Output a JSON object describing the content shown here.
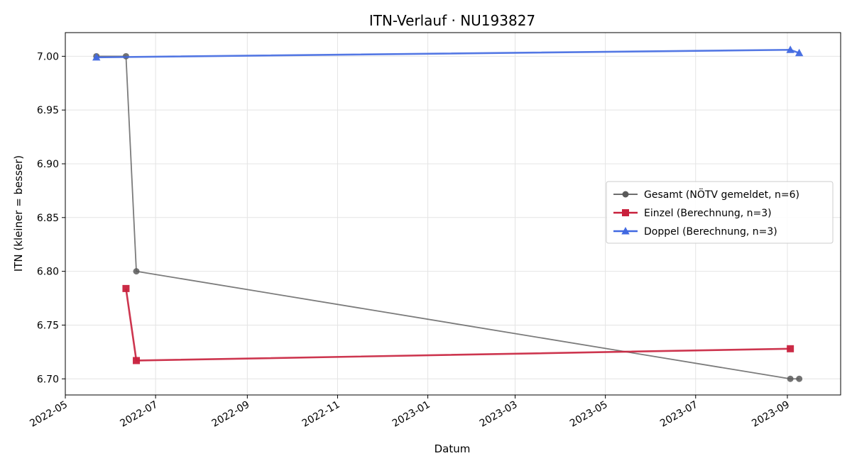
{
  "chart_data": {
    "type": "line",
    "title": "ITN-Verlauf · NU193827",
    "xlabel": "Datum",
    "ylabel": "ITN  (kleiner = besser)",
    "x_type": "date",
    "xlim": [
      "2022-05-01",
      "2023-10-07"
    ],
    "ylim": [
      6.685,
      7.022
    ],
    "x_ticks": [
      "2022-05",
      "2022-07",
      "2022-09",
      "2022-11",
      "2023-01",
      "2023-03",
      "2023-05",
      "2023-07",
      "2023-09"
    ],
    "y_ticks": [
      "6.70",
      "6.75",
      "6.80",
      "6.85",
      "6.90",
      "6.95",
      "7.00"
    ],
    "grid": true,
    "legend_position": "right",
    "series": [
      {
        "name": "Gesamt (NÖTV gemeldet, n=6)",
        "color": "#5a5a5a",
        "marker": "circle",
        "points": [
          {
            "x": "2022-05-22",
            "y": 7.0
          },
          {
            "x": "2022-06-11",
            "y": 7.0
          },
          {
            "x": "2022-06-18",
            "y": 6.8
          },
          {
            "x": "2023-09-03",
            "y": 6.7
          },
          {
            "x": "2023-09-09",
            "y": 6.7
          }
        ]
      },
      {
        "name": "Einzel (Berechnung, n=3)",
        "color": "#c8203c",
        "marker": "square",
        "points": [
          {
            "x": "2022-06-11",
            "y": 6.784
          },
          {
            "x": "2022-06-18",
            "y": 6.717
          },
          {
            "x": "2023-09-03",
            "y": 6.728
          }
        ]
      },
      {
        "name": "Doppel (Berechnung, n=3)",
        "color": "#4169e1",
        "marker": "triangle",
        "points": [
          {
            "x": "2022-05-22",
            "y": 6.999
          },
          {
            "x": "2023-09-03",
            "y": 7.006
          },
          {
            "x": "2023-09-09",
            "y": 7.003
          }
        ]
      }
    ]
  }
}
